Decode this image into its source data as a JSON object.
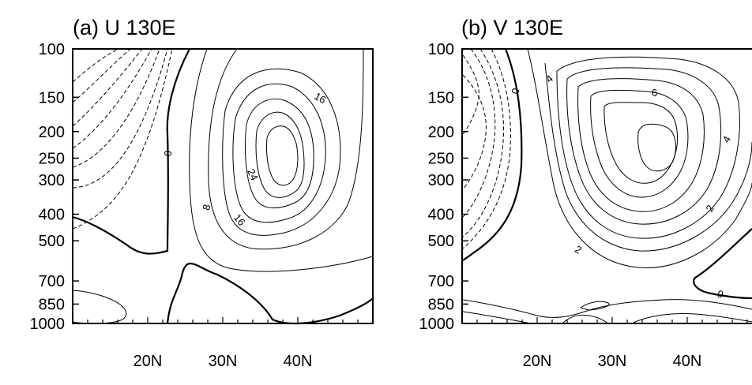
{
  "chart_data": [
    {
      "type": "contour",
      "title": "(a) U 130E",
      "variable": "U",
      "longitude": "130E",
      "y_ticks": [
        "100",
        "150",
        "200",
        "250",
        "300",
        "400",
        "500",
        "700",
        "850",
        "1000"
      ],
      "y_scale": "log-pressure",
      "x_ticks": [
        "20N",
        "30N",
        "40N"
      ],
      "contour_interval": 4,
      "negative_contours": "dashed",
      "zero_contour": "bold",
      "contour_labels": [
        "0",
        "8",
        "16",
        "16",
        "24"
      ]
    },
    {
      "type": "contour",
      "title": "(b) V 130E",
      "variable": "V",
      "longitude": "130E",
      "y_ticks": [
        "100",
        "150",
        "200",
        "250",
        "300",
        "400",
        "500",
        "700",
        "850",
        "1000"
      ],
      "y_scale": "log-pressure",
      "x_ticks": [
        "20N",
        "30N",
        "40N"
      ],
      "contour_interval": 1,
      "negative_contours": "dashed",
      "zero_contour": "bold",
      "contour_labels": [
        "0",
        "4",
        "6",
        "4",
        "2",
        "2",
        "0"
      ]
    }
  ]
}
